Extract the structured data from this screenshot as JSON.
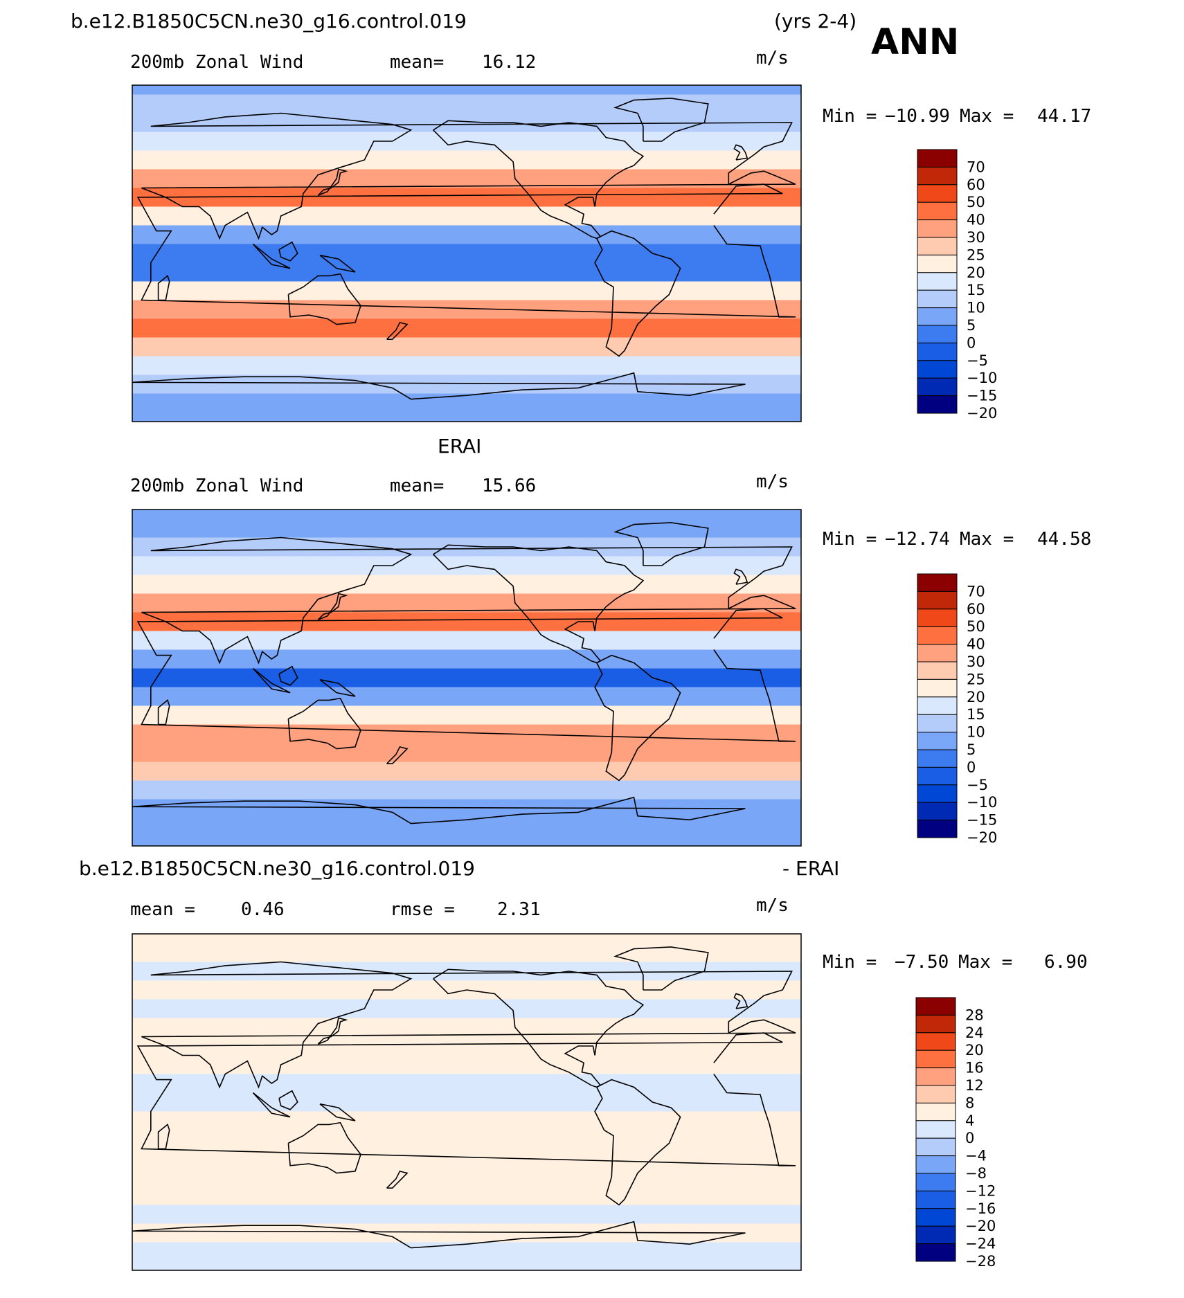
{
  "header": {
    "case_title": "b.e12.B1850C5CN.ne30_g16.control.019",
    "years": "(yrs 2-4)",
    "season": "ANN"
  },
  "palette": {
    "wind": [
      "#000080",
      "#002ab3",
      "#0047d6",
      "#1a5ee6",
      "#3d7cf0",
      "#7aa6f7",
      "#b3ccfa",
      "#d9e8fc",
      "#fff0e0",
      "#ffcbb0",
      "#ffa07f",
      "#ff7040",
      "#f04818",
      "#c02808",
      "#8b0000"
    ],
    "diff": [
      "#000080",
      "#002ab3",
      "#0047d6",
      "#1a5ee6",
      "#3d7cf0",
      "#7aa6f7",
      "#b3ccfa",
      "#d9e8fc",
      "#fff0e0",
      "#ffcbb0",
      "#ffa07f",
      "#ff7040",
      "#f04818",
      "#c02808",
      "#8b0000"
    ]
  },
  "chart_data": [
    {
      "type": "heatmap",
      "title": "",
      "variable": "200mb Zonal Wind",
      "left_stat": "mean=",
      "left_value": "16.12",
      "units": "m/s",
      "min_label": "Min = ",
      "min_value": "−10.99",
      "max_label": "Max = ",
      "max_value": "44.17",
      "color_levels": [
        "70",
        "60",
        "50",
        "40",
        "30",
        "25",
        "20",
        "15",
        "10",
        "5",
        "0",
        "−5",
        "−10",
        "−15",
        "−20"
      ],
      "bands": [
        {
          "lat": 90,
          "value": 3
        },
        {
          "lat": 80,
          "value": 6
        },
        {
          "lat": 70,
          "value": 8
        },
        {
          "lat": 60,
          "value": 12
        },
        {
          "lat": 50,
          "value": 18
        },
        {
          "lat": 40,
          "value": 27
        },
        {
          "lat": 30,
          "value": 35
        },
        {
          "lat": 20,
          "value": 16
        },
        {
          "lat": 10,
          "value": 2
        },
        {
          "lat": 0,
          "value": -4
        },
        {
          "lat": -10,
          "value": 0
        },
        {
          "lat": -20,
          "value": 18
        },
        {
          "lat": -30,
          "value": 30
        },
        {
          "lat": -40,
          "value": 31
        },
        {
          "lat": -50,
          "value": 24
        },
        {
          "lat": -60,
          "value": 12
        },
        {
          "lat": -70,
          "value": 6
        },
        {
          "lat": -80,
          "value": 4
        },
        {
          "lat": -90,
          "value": 2
        }
      ]
    },
    {
      "type": "heatmap",
      "title": "ERAI",
      "variable": "200mb Zonal Wind",
      "left_stat": "mean=",
      "left_value": "15.66",
      "units": "m/s",
      "min_label": "Min = ",
      "min_value": "−12.74",
      "max_label": "Max = ",
      "max_value": "44.58",
      "color_levels": [
        "70",
        "60",
        "50",
        "40",
        "30",
        "25",
        "20",
        "15",
        "10",
        "5",
        "0",
        "−5",
        "−10",
        "−15",
        "−20"
      ],
      "bands": [
        {
          "lat": 90,
          "value": 2
        },
        {
          "lat": 80,
          "value": 5
        },
        {
          "lat": 70,
          "value": 7
        },
        {
          "lat": 60,
          "value": 11
        },
        {
          "lat": 50,
          "value": 17
        },
        {
          "lat": 40,
          "value": 26
        },
        {
          "lat": 30,
          "value": 34
        },
        {
          "lat": 20,
          "value": 14
        },
        {
          "lat": 10,
          "value": 1
        },
        {
          "lat": 0,
          "value": -5
        },
        {
          "lat": -10,
          "value": 1
        },
        {
          "lat": -20,
          "value": 19
        },
        {
          "lat": -30,
          "value": 30
        },
        {
          "lat": -40,
          "value": 30
        },
        {
          "lat": -50,
          "value": 23
        },
        {
          "lat": -60,
          "value": 10
        },
        {
          "lat": -70,
          "value": 5
        },
        {
          "lat": -80,
          "value": 3
        },
        {
          "lat": -90,
          "value": 1
        }
      ]
    },
    {
      "type": "heatmap",
      "title": "b.e12.B1850C5CN.ne30_g16.control.019",
      "title_suffix": "- ERAI",
      "variable": "",
      "left_stat": "mean = ",
      "left_value": "0.46",
      "right_stat": "rmse = ",
      "right_value": "2.31",
      "units": "m/s",
      "min_label": "Min = ",
      "min_value": "−7.50",
      "max_label": "Max = ",
      "max_value": "6.90",
      "color_levels": [
        "28",
        "24",
        "20",
        "16",
        "12",
        "8",
        "4",
        "0",
        "−4",
        "−8",
        "−12",
        "−16",
        "−20",
        "−24",
        "−28"
      ],
      "bands": [
        {
          "lat": 90,
          "value": 0.5
        },
        {
          "lat": 80,
          "value": 1
        },
        {
          "lat": 70,
          "value": -0.5
        },
        {
          "lat": 60,
          "value": 0.5
        },
        {
          "lat": 50,
          "value": -1
        },
        {
          "lat": 40,
          "value": 1
        },
        {
          "lat": 30,
          "value": 2
        },
        {
          "lat": 20,
          "value": 1
        },
        {
          "lat": 10,
          "value": -1
        },
        {
          "lat": 0,
          "value": -2
        },
        {
          "lat": -10,
          "value": 1
        },
        {
          "lat": -20,
          "value": 1.5
        },
        {
          "lat": -30,
          "value": 2
        },
        {
          "lat": -40,
          "value": 1
        },
        {
          "lat": -50,
          "value": 0.5
        },
        {
          "lat": -60,
          "value": -1
        },
        {
          "lat": -70,
          "value": 0.5
        },
        {
          "lat": -80,
          "value": -0.5
        },
        {
          "lat": -90,
          "value": 0
        }
      ]
    }
  ]
}
